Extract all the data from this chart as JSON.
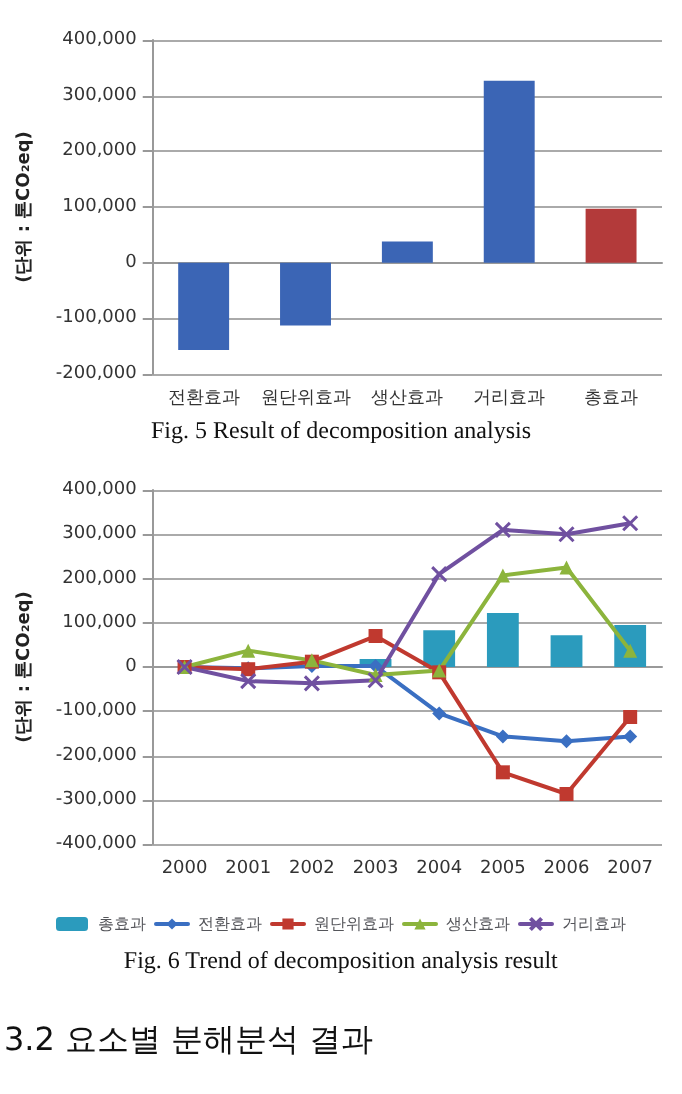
{
  "chart_data": [
    {
      "type": "bar",
      "categories": [
        "전환효과",
        "원단위효과",
        "생산효과",
        "거리효과",
        "총효과"
      ],
      "values": [
        -157000,
        -113000,
        38000,
        327000,
        97000
      ],
      "colors": [
        "#3b65b5",
        "#3b65b5",
        "#3b65b5",
        "#3b65b5",
        "#b33a3a"
      ],
      "ylabel": "(단위 : 톤CO₂eq)",
      "ylim": [
        -200000,
        400000
      ],
      "yticks": [
        {
          "value": -200000,
          "label": "-200,000"
        },
        {
          "value": -100000,
          "label": "-100,000"
        },
        {
          "value": 0,
          "label": "0"
        },
        {
          "value": 100000,
          "label": "100,000"
        },
        {
          "value": 200000,
          "label": "200,000"
        },
        {
          "value": 300000,
          "label": "300,000"
        },
        {
          "value": 400000,
          "label": "400,000"
        }
      ],
      "grid": "y",
      "legend": false,
      "annotations": [
        "Fig. 5 Result of decomposition analysis"
      ]
    },
    {
      "type": "line",
      "categories": [
        "2000",
        "2001",
        "2002",
        "2003",
        "2004",
        "2005",
        "2006",
        "2007"
      ],
      "series": [
        {
          "name": "총효과",
          "type": "bar",
          "color": "#2b9bbd",
          "values": [
            0,
            0,
            0,
            18000,
            83000,
            122000,
            72000,
            95000
          ]
        },
        {
          "name": "전환효과",
          "color": "#3a6fc2",
          "marker": "diamond",
          "values": [
            0,
            -3000,
            2000,
            2000,
            -105000,
            -157000,
            -168000,
            -157000
          ]
        },
        {
          "name": "원단위효과",
          "color": "#c0392f",
          "marker": "square",
          "values": [
            0,
            -5000,
            12000,
            70000,
            -12000,
            -238000,
            -287000,
            -113000
          ]
        },
        {
          "name": "생산효과",
          "color": "#8cb43c",
          "marker": "triangle",
          "values": [
            0,
            37000,
            15000,
            -18000,
            -8000,
            207000,
            225000,
            37000
          ]
        },
        {
          "name": "거리효과",
          "color": "#7050a0",
          "marker": "cross",
          "values": [
            0,
            -32000,
            -37000,
            -30000,
            210000,
            310000,
            300000,
            325000
          ]
        }
      ],
      "ylabel": "(단위 : 톤CO₂eq)",
      "ylim": [
        -400000,
        400000
      ],
      "yticks": [
        {
          "value": -400000,
          "label": "-400,000"
        },
        {
          "value": -300000,
          "label": "-300,000"
        },
        {
          "value": -200000,
          "label": "-200,000"
        },
        {
          "value": -100000,
          "label": "-100,000"
        },
        {
          "value": 0,
          "label": "0"
        },
        {
          "value": 100000,
          "label": "100,000"
        },
        {
          "value": 200000,
          "label": "200,000"
        },
        {
          "value": 300000,
          "label": "300,000"
        },
        {
          "value": 400000,
          "label": "400,000"
        }
      ],
      "grid": "y",
      "legend": "bottom",
      "annotations": [
        "Fig. 6 Trend of decomposition analysis result"
      ]
    },
    {
      "type": "other",
      "title": "3.2 요소별 분해분석 결과"
    }
  ]
}
